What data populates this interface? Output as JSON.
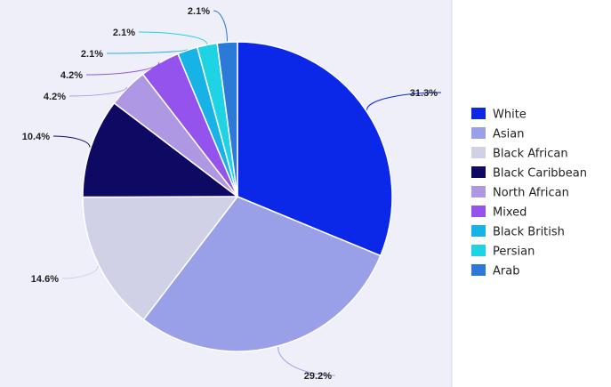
{
  "chart_data": {
    "type": "pie",
    "title": "",
    "legend_position": "right",
    "slices": [
      {
        "name": "White",
        "value": 31.3,
        "label": "31.3%",
        "color": "#0b27e8"
      },
      {
        "name": "Asian",
        "value": 29.2,
        "label": "29.2%",
        "color": "#9aa0e8"
      },
      {
        "name": "Black African",
        "value": 14.6,
        "label": "14.6%",
        "color": "#d0d0e6"
      },
      {
        "name": "Black Caribbean",
        "value": 10.4,
        "label": "10.4%",
        "color": "#0e0a63"
      },
      {
        "name": "North African",
        "value": 4.2,
        "label": "4.2%",
        "color": "#ae98e4"
      },
      {
        "name": "Mixed",
        "value": 4.2,
        "label": "4.2%",
        "color": "#9353ec"
      },
      {
        "name": "Black British",
        "value": 2.1,
        "label": "2.1%",
        "color": "#17b2e6"
      },
      {
        "name": "Persian",
        "value": 2.1,
        "label": "2.1%",
        "color": "#1ed4e4"
      },
      {
        "name": "Arab",
        "value": 2.1,
        "label": "2.1%",
        "color": "#2b7ad8"
      }
    ]
  }
}
